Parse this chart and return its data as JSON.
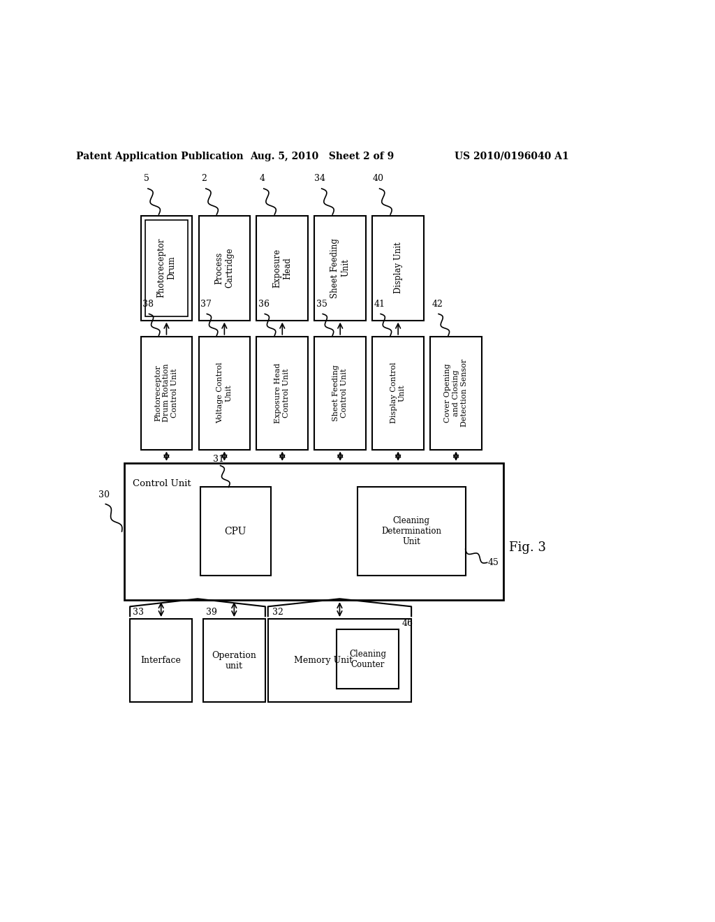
{
  "bg_color": "#ffffff",
  "header_left": "Patent Application Publication",
  "header_mid": "Aug. 5, 2010   Sheet 2 of 9",
  "header_right": "US 2010/0196040 A1",
  "fig_label": "Fig. 3",
  "row1_boxes": [
    {
      "label": "Photoreceptor\nDrum",
      "ref": "5"
    },
    {
      "label": "Process\nCartridge",
      "ref": "2"
    },
    {
      "label": "Exposure\nHead",
      "ref": "4"
    },
    {
      "label": "Sheet Feeding\nUnit",
      "ref": "34"
    },
    {
      "label": "Display Unit",
      "ref": "40"
    }
  ],
  "row2_boxes": [
    {
      "label": "Photoreceptor\nDrum Rotation\nControl Unit",
      "ref": "38"
    },
    {
      "label": "Voltage Control\nUnit",
      "ref": "37"
    },
    {
      "label": "Exposure Head\nControl Unit",
      "ref": "36"
    },
    {
      "label": "Sheet Feeding\nControl Unit",
      "ref": "35"
    },
    {
      "label": "Display Control\nUnit",
      "ref": "41"
    },
    {
      "label": "Cover Opening\nand Closing\nDetection Sensor",
      "ref": "42"
    }
  ],
  "ctrl_ref": "30",
  "ctrl_label": "Control Unit",
  "cpu_label": "CPU",
  "cpu_ref": "31",
  "clean_det_label": "Cleaning\nDetermination\nUnit",
  "clean_det_ref": "45",
  "interface_label": "Interface",
  "interface_ref": "33",
  "operation_label": "Operation\nunit",
  "operation_ref": "39",
  "memory_label": "Memory Unit",
  "memory_ref": "32",
  "clean_counter_label": "Cleaning\nCounter",
  "clean_counter_ref": "46"
}
